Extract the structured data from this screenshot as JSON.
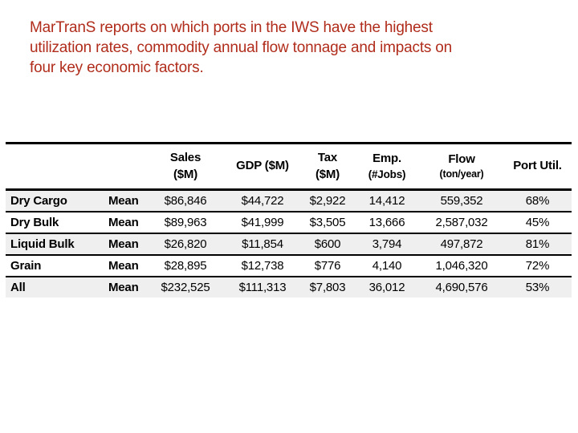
{
  "slide": {
    "title_lines": [
      "MarTranS reports on which ports in the IWS have the highest",
      "utilization rates, commodity annual flow tonnage and impacts on",
      "four key economic factors."
    ],
    "colors": {
      "title_text": "#B02C1B",
      "table_text": "#000000",
      "row_shading": "#EFEFEF",
      "rule": "#000000",
      "background": "#FFFFFF"
    }
  },
  "table": {
    "columns": [
      {
        "id": "commodity",
        "label": "",
        "sub": ""
      },
      {
        "id": "stat",
        "label": "",
        "sub": ""
      },
      {
        "id": "sales",
        "label": "Sales",
        "sub": "($M)"
      },
      {
        "id": "gdp",
        "label": "GDP ($M)",
        "sub": ""
      },
      {
        "id": "tax",
        "label": "Tax",
        "sub": "($M)"
      },
      {
        "id": "emp",
        "label": "Emp.",
        "sub": "(#Jobs)"
      },
      {
        "id": "flow",
        "label": "Flow",
        "sub": "(ton/year)"
      },
      {
        "id": "util",
        "label": "Port Util.",
        "sub": ""
      }
    ],
    "rows": [
      {
        "commodity": "Dry Cargo",
        "stat": "Mean",
        "sales": "$86,846",
        "gdp": "$44,722",
        "tax": "$2,922",
        "emp": "14,412",
        "flow": "559,352",
        "util": "68%"
      },
      {
        "commodity": "Dry Bulk",
        "stat": "Mean",
        "sales": "$89,963",
        "gdp": "$41,999",
        "tax": "$3,505",
        "emp": "13,666",
        "flow": "2,587,032",
        "util": "45%"
      },
      {
        "commodity": "Liquid Bulk",
        "stat": "Mean",
        "sales": "$26,820",
        "gdp": "$11,854",
        "tax": "$600",
        "emp": "3,794",
        "flow": "497,872",
        "util": "81%"
      },
      {
        "commodity": "Grain",
        "stat": "Mean",
        "sales": "$28,895",
        "gdp": "$12,738",
        "tax": "$776",
        "emp": "4,140",
        "flow": "1,046,320",
        "util": "72%"
      },
      {
        "commodity": "All",
        "stat": "Mean",
        "sales": "$232,525",
        "gdp": "$111,313",
        "tax": "$7,803",
        "emp": "36,012",
        "flow": "4,690,576",
        "util": "53%"
      }
    ]
  }
}
